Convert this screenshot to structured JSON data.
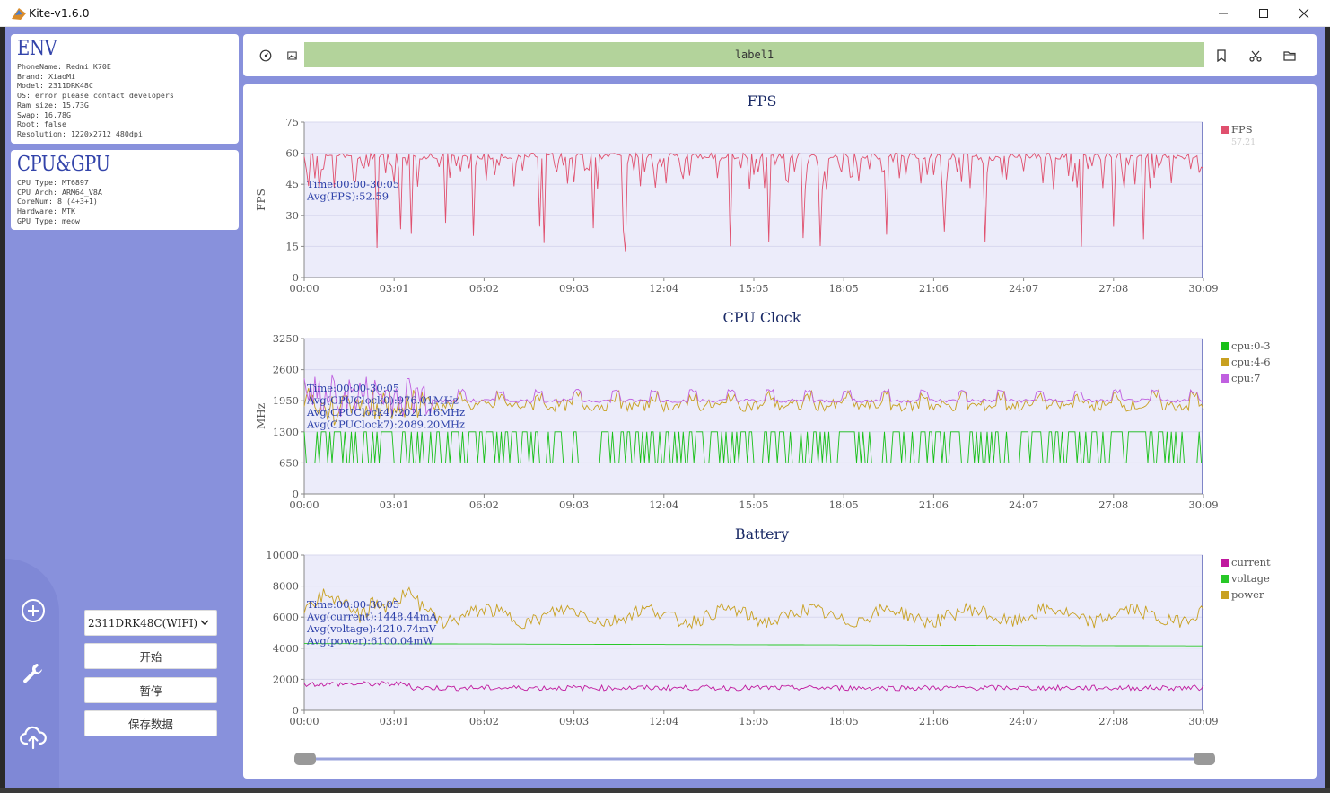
{
  "app": {
    "title": "Kite-v1.6.0"
  },
  "env": {
    "heading": "ENV",
    "lines": [
      "PhoneName: Redmi K70E",
      "Brand: XiaoMi",
      "Model: 2311DRK48C",
      "OS: error please contact developers",
      "Ram size: 15.73G",
      "Swap: 16.78G",
      "Root: false",
      "Resolution: 1220x2712 480dpi"
    ]
  },
  "cpugpu": {
    "heading": "CPU&GPU",
    "lines": [
      "CPU Type: MT6897",
      "CPU Arch: ARM64_V8A",
      "CoreNum: 8 (4+3+1)",
      "Hardware: MTK",
      "GPU Type: meow"
    ]
  },
  "controls": {
    "device_select": "2311DRK48C(WIFI)",
    "start": "开始",
    "pause": "暂停",
    "save": "保存数据"
  },
  "toolbar": {
    "label": "label1"
  },
  "icons": {
    "titlebar": [
      "app-icon",
      "minimize-icon",
      "maximize-icon",
      "close-icon"
    ],
    "toolbar": [
      "gauge-icon",
      "image-icon",
      "bookmark-icon",
      "scissors-icon",
      "folder-icon"
    ],
    "rail": [
      "add-circle-icon",
      "wrench-icon",
      "cloud-upload-icon"
    ]
  },
  "colors": {
    "accent": "#8891dc",
    "fps": "#e0506e",
    "cpu0": "#18c018",
    "cpu4": "#c8a020",
    "cpu7": "#c060e0",
    "current": "#c0189e",
    "voltage": "#28c828",
    "power": "#c8a020",
    "label_bar": "#b3d39b"
  },
  "x_ticks": [
    "00:00",
    "03:01",
    "06:02",
    "09:03",
    "12:04",
    "15:05",
    "18:05",
    "21:06",
    "24:07",
    "27:08",
    "30:09"
  ],
  "chart_data": [
    {
      "type": "line",
      "title": "FPS",
      "ylabel": "FPS",
      "ylim": [
        0,
        75
      ],
      "y_ticks": [
        "75",
        "60",
        "45",
        "30",
        "15",
        "0"
      ],
      "series": [
        {
          "name": "FPS",
          "mean": 60,
          "min": 12,
          "max": 62
        }
      ],
      "legend_sub": "57.21",
      "annotations": [
        "Time:00:00-30:05",
        "Avg(FPS):52.59"
      ]
    },
    {
      "type": "line",
      "title": "CPU Clock",
      "ylabel": "MHz",
      "ylim": [
        0,
        3250
      ],
      "y_ticks": [
        "3250",
        "2600",
        "1950",
        "1300",
        "650",
        "0"
      ],
      "series": [
        {
          "name": "cpu:0-3",
          "min": 650,
          "max": 1300
        },
        {
          "name": "cpu:4-6",
          "mean": 1850,
          "max": 2400
        },
        {
          "name": "cpu:7",
          "mean": 1950,
          "max": 2500
        }
      ],
      "annotations": [
        "Time:00:00-30:05",
        "Avg(CPUClock0):976.01MHz",
        "Avg(CPUClock4):2021.16MHz",
        "Avg(CPUClock7):2089.20MHz"
      ]
    },
    {
      "type": "line",
      "title": "Battery",
      "ylabel": "",
      "ylim": [
        0,
        10000
      ],
      "y_ticks": [
        "10000",
        "8000",
        "6000",
        "4000",
        "2000",
        "0"
      ],
      "series": [
        {
          "name": "current",
          "mean": 1448,
          "min": 900,
          "max": 2100
        },
        {
          "name": "voltage",
          "start": 4300,
          "end": 4150
        },
        {
          "name": "power",
          "mean": 6100,
          "min": 4200,
          "max": 8400
        }
      ],
      "annotations": [
        "Time:00:00-30:05",
        "Avg(current):1448.44mA",
        "Avg(voltage):4210.74mV",
        "Avg(power):6100.04mW"
      ]
    }
  ]
}
